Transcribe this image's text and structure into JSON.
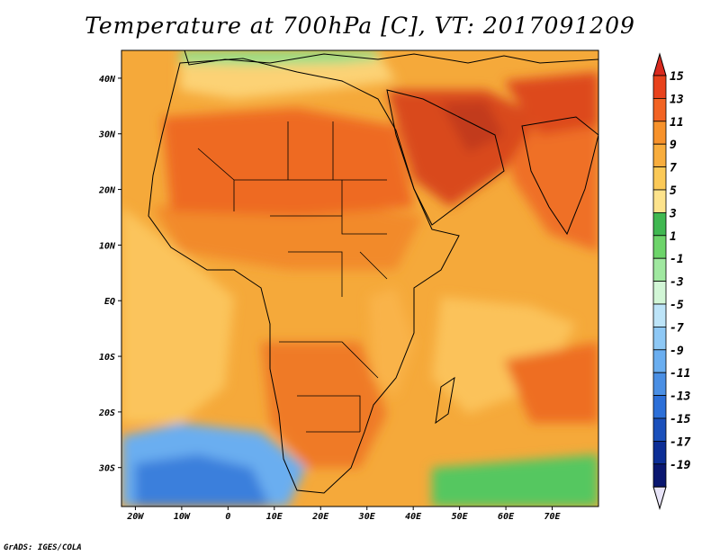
{
  "title": "Temperature at 700hPa [C], VT: 2017091209",
  "credit": "GrADS: IGES/COLA",
  "map": {
    "lon_range": [
      -23,
      80
    ],
    "lat_range": [
      -37,
      45
    ],
    "lon_ticks": [
      {
        "lon": -20,
        "label": "20W"
      },
      {
        "lon": -10,
        "label": "10W"
      },
      {
        "lon": 0,
        "label": "0"
      },
      {
        "lon": 10,
        "label": "10E"
      },
      {
        "lon": 20,
        "label": "20E"
      },
      {
        "lon": 30,
        "label": "30E"
      },
      {
        "lon": 40,
        "label": "40E"
      },
      {
        "lon": 50,
        "label": "50E"
      },
      {
        "lon": 60,
        "label": "60E"
      },
      {
        "lon": 70,
        "label": "70E"
      }
    ],
    "lat_ticks": [
      {
        "lat": 40,
        "label": "40N"
      },
      {
        "lat": 30,
        "label": "30N"
      },
      {
        "lat": 20,
        "label": "20N"
      },
      {
        "lat": 10,
        "label": "10N"
      },
      {
        "lat": 0,
        "label": "EQ"
      },
      {
        "lat": -10,
        "label": "10S"
      },
      {
        "lat": -20,
        "label": "20S"
      },
      {
        "lat": -30,
        "label": "30S"
      }
    ],
    "background_color": "#f5a93a"
  },
  "colorbar": {
    "labels": [
      "15",
      "13",
      "11",
      "9",
      "7",
      "5",
      "3",
      "1",
      "-1",
      "-3",
      "-5",
      "-7",
      "-9",
      "-11",
      "-13",
      "-15",
      "-17",
      "-19"
    ],
    "top_arrow_color": "#d92a1e",
    "bottom_arrow_color": "#e8e4f8",
    "colors": [
      "#e8421c",
      "#f26323",
      "#f7922b",
      "#f8ad3d",
      "#fbc957",
      "#fde38c",
      "#40b851",
      "#6dd46a",
      "#a0e8a0",
      "#d2f6d6",
      "#bde4f8",
      "#8ec8f5",
      "#6aaef0",
      "#4a8fe4",
      "#2c6fd8",
      "#1b50bb",
      "#0c2e96",
      "#0a1770"
    ]
  },
  "regions": [
    {
      "name": "sahara-warm",
      "color": "#ee6b24"
    },
    {
      "name": "arabia-hot",
      "color": "#d94a1c"
    },
    {
      "name": "arabia-core",
      "color": "#c23a1a"
    },
    {
      "name": "iran-hot",
      "color": "#dd4a1e"
    },
    {
      "name": "india-warm",
      "color": "#ef6f26"
    },
    {
      "name": "sahel-warm",
      "color": "#f28a2c"
    },
    {
      "name": "southern-africa-warm",
      "color": "#ef7a28"
    },
    {
      "name": "madagascar-east-warm",
      "color": "#ee6e24"
    },
    {
      "name": "east-africa-mild",
      "color": "#f9b34a"
    },
    {
      "name": "atlantic-mild",
      "color": "#fbc45b"
    },
    {
      "name": "indian-ocean-mild",
      "color": "#fbc25a"
    },
    {
      "name": "mediterranean-mild",
      "color": "#fcd275"
    },
    {
      "name": "europe-cool",
      "color": "#8fe08a"
    },
    {
      "name": "south-atlantic-cold",
      "color": "#6aaef0"
    },
    {
      "name": "south-atlantic-colder",
      "color": "#3b7fdc"
    },
    {
      "name": "south-indian-cool",
      "color": "#55c760"
    }
  ]
}
